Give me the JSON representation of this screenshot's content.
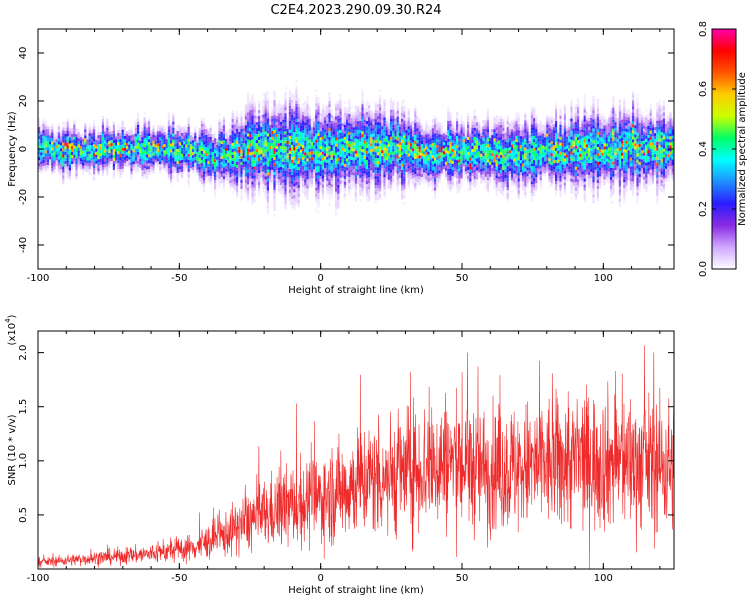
{
  "title": "C2E4.2023.290.09.30.R24",
  "colors": {
    "snr_line": "#ee2a2a",
    "background": "#ffffff",
    "colormap": [
      "#ffffff",
      "#cfa8ff",
      "#8a2be2",
      "#2a1cff",
      "#1e90ff",
      "#00ffff",
      "#00ff66",
      "#ccff00",
      "#ffcc00",
      "#ff5500",
      "#ff0000",
      "#ff00aa"
    ]
  },
  "chart_data": [
    {
      "type": "heatmap",
      "title": "",
      "xlabel": "Height of straight line (km)",
      "ylabel": "Frequency (Hz)",
      "xlim": [
        -100,
        125
      ],
      "ylim": [
        -50,
        50
      ],
      "xticks": [
        "-100",
        "-50",
        "0",
        "50",
        "100"
      ],
      "xtick_values": [
        -100,
        -50,
        0,
        50,
        100
      ],
      "yticks": [
        "-40",
        "-20",
        "0",
        "20",
        "40"
      ],
      "ytick_values": [
        -40,
        -20,
        0,
        20,
        40
      ],
      "colorbar": {
        "label": "Normalized spectral amplitude",
        "range": [
          0.0,
          0.8
        ],
        "ticks": [
          "0.0",
          "0.2",
          "0.4",
          "0.6",
          "0.8"
        ],
        "tick_values": [
          0.0,
          0.2,
          0.4,
          0.6,
          0.8
        ]
      },
      "band_center_hz": [
        {
          "x": -100,
          "y": 0
        },
        {
          "x": -75,
          "y": 0
        },
        {
          "x": -50,
          "y": 0
        },
        {
          "x": -35,
          "y": -3
        },
        {
          "x": -25,
          "y": 0
        },
        {
          "x": 0,
          "y": 0
        },
        {
          "x": 25,
          "y": 0
        },
        {
          "x": 45,
          "y": -2
        },
        {
          "x": 70,
          "y": -2
        },
        {
          "x": 100,
          "y": 0
        },
        {
          "x": 125,
          "y": 0
        }
      ],
      "band_halfwidth_hz": [
        {
          "x": -100,
          "y": 10
        },
        {
          "x": -60,
          "y": 10
        },
        {
          "x": -35,
          "y": 12
        },
        {
          "x": -20,
          "y": 20
        },
        {
          "x": 15,
          "y": 18
        },
        {
          "x": 50,
          "y": 12
        },
        {
          "x": 100,
          "y": 18
        },
        {
          "x": 125,
          "y": 16
        }
      ]
    },
    {
      "type": "line",
      "title": "",
      "xlabel": "Height of straight line (km)",
      "ylabel": "SNR (10 * v/v)",
      "y_multiplier": "(x10",
      "y_multiplier_exp": "4",
      "y_multiplier_close": ")",
      "xlim": [
        -100,
        125
      ],
      "ylim": [
        0,
        2.2
      ],
      "xticks": [
        "-100",
        "-50",
        "0",
        "50",
        "100"
      ],
      "xtick_values": [
        -100,
        -50,
        0,
        50,
        100
      ],
      "yticks": [
        "0.5",
        "1.0",
        "1.5",
        "2.0"
      ],
      "ytick_values": [
        0.5,
        1.0,
        1.5,
        2.0
      ],
      "series": [
        {
          "envelope": [
            {
              "x": -100,
              "y": 0.06
            },
            {
              "x": -80,
              "y": 0.1
            },
            {
              "x": -60,
              "y": 0.14
            },
            {
              "x": -45,
              "y": 0.2
            },
            {
              "x": -35,
              "y": 0.3
            },
            {
              "x": -25,
              "y": 0.45
            },
            {
              "x": -15,
              "y": 0.55
            },
            {
              "x": 0,
              "y": 0.65
            },
            {
              "x": 15,
              "y": 0.82
            },
            {
              "x": 30,
              "y": 0.9
            },
            {
              "x": 45,
              "y": 1.0
            },
            {
              "x": 60,
              "y": 0.9
            },
            {
              "x": 75,
              "y": 0.95
            },
            {
              "x": 90,
              "y": 1.0
            },
            {
              "x": 105,
              "y": 1.0
            },
            {
              "x": 125,
              "y": 0.95
            }
          ]
        }
      ]
    }
  ]
}
